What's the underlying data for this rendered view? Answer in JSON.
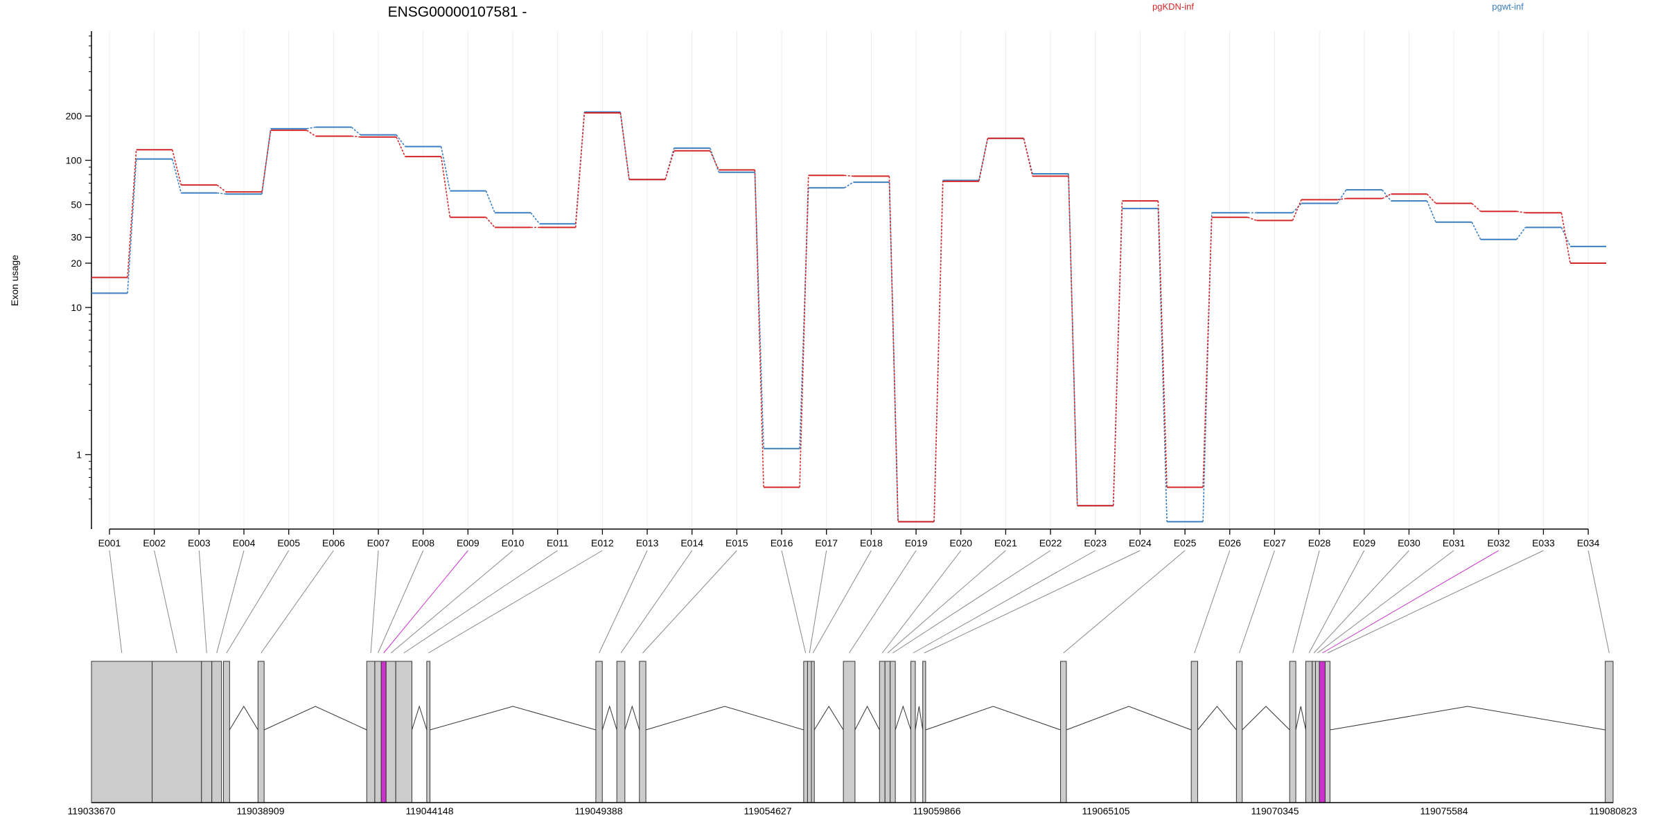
{
  "chart_data": {
    "type": "line",
    "title": "ENSG00000107581 -",
    "ylabel": "Exon usage",
    "xlabel": "",
    "yscale": "log",
    "ylim": [
      0.42,
      290
    ],
    "grid": true,
    "legend_placement": "top-right",
    "colors": {
      "pgKDN-inf": "#d62728",
      "pgwt-inf": "#3a7fc1",
      "highlight": "#cc33cc",
      "exon_fill": "#cccccc"
    },
    "yticks": [
      {
        "value": 1,
        "label": "1"
      },
      {
        "value": 10,
        "label": "10"
      },
      {
        "value": 20,
        "label": "20"
      },
      {
        "value": 30,
        "label": "30"
      },
      {
        "value": 50,
        "label": "50"
      },
      {
        "value": 100,
        "label": "100"
      },
      {
        "value": 200,
        "label": "200"
      }
    ],
    "categories": [
      "E001",
      "E002",
      "E003",
      "E004",
      "E005",
      "E006",
      "E007",
      "E008",
      "E009",
      "E010",
      "E011",
      "E012",
      "E013",
      "E014",
      "E015",
      "E016",
      "E017",
      "E018",
      "E019",
      "E020",
      "E021",
      "E022",
      "E023",
      "E024",
      "E025",
      "E026",
      "E027",
      "E028",
      "E029",
      "E030",
      "E031",
      "E032",
      "E033",
      "E034"
    ],
    "series": [
      {
        "name": "pgKDN-inf",
        "values": [
          16,
          118,
          68,
          61,
          160,
          146,
          144,
          106,
          41,
          35,
          35,
          210,
          74,
          116,
          86,
          0.6,
          79,
          78,
          0.35,
          72,
          141,
          78,
          0.45,
          53,
          0.6,
          41,
          39,
          54,
          55,
          59,
          51,
          45,
          44,
          20
        ]
      },
      {
        "name": "pgwt-inf",
        "values": [
          12.5,
          102,
          60,
          59,
          164,
          168,
          149,
          124,
          62,
          44,
          37,
          213,
          74,
          121,
          83,
          1.1,
          65,
          71,
          0.35,
          73,
          141,
          81,
          0.45,
          47,
          0.35,
          44,
          44,
          51,
          63,
          53,
          38,
          29,
          35,
          26
        ]
      }
    ],
    "gene_track": {
      "coordinate_labels": [
        "119033670",
        "119038909",
        "119044148",
        "119049388",
        "119054627",
        "119059866",
        "119065105",
        "119070345",
        "119075584",
        "119080823"
      ],
      "coord_start": 119033670,
      "coord_end": 119080823,
      "highlighted_exons": [
        "E009",
        "E032"
      ]
    }
  }
}
